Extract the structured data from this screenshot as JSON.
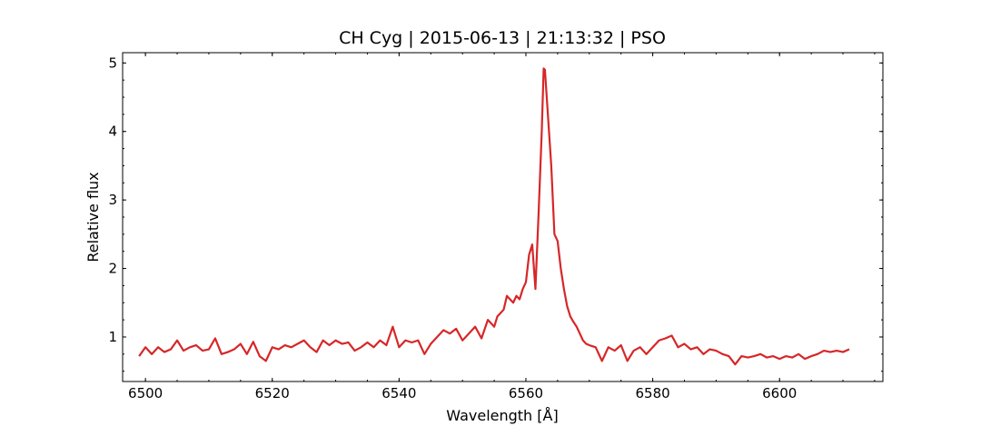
{
  "chart_data": {
    "type": "line",
    "title": "CH Cyg | 2015-06-13 | 21:13:32 | PSO",
    "x_label": "Wavelength [Å]",
    "y_label": "Relative flux",
    "color": "#d62728",
    "xlim": [
      6496.4,
      6616.3
    ],
    "ylim": [
      0.35,
      5.15
    ],
    "xticks": [
      6500,
      6520,
      6540,
      6560,
      6580,
      6600
    ],
    "yticks": [
      1,
      2,
      3,
      4,
      5
    ],
    "x": [
      6499,
      6500,
      6501,
      6502,
      6503,
      6504,
      6505,
      6506,
      6507,
      6508,
      6509,
      6510,
      6511,
      6512,
      6513,
      6514,
      6515,
      6516,
      6517,
      6518,
      6519,
      6520,
      6521,
      6522,
      6523,
      6524,
      6525,
      6526,
      6527,
      6528,
      6529,
      6530,
      6531,
      6532,
      6533,
      6534,
      6535,
      6536,
      6537,
      6538,
      6539,
      6540,
      6541,
      6542,
      6543,
      6544,
      6545,
      6546,
      6547,
      6548,
      6549,
      6550,
      6551,
      6552,
      6553,
      6554,
      6555,
      6555.5,
      6556,
      6556.5,
      6557,
      6557.5,
      6558,
      6558.5,
      6559,
      6559.5,
      6560,
      6560.5,
      6561,
      6561.5,
      6562,
      6562.5,
      6562.8,
      6563,
      6563.5,
      6564,
      6564.5,
      6565,
      6565.5,
      6566,
      6566.5,
      6567,
      6567.5,
      6568,
      6568.5,
      6569,
      6569.5,
      6570,
      6571,
      6572,
      6573,
      6574,
      6575,
      6576,
      6577,
      6578,
      6579,
      6580,
      6581,
      6582,
      6583,
      6584,
      6585,
      6586,
      6587,
      6588,
      6589,
      6590,
      6591,
      6592,
      6593,
      6594,
      6595,
      6596,
      6597,
      6598,
      6599,
      6600,
      6601,
      6602,
      6603,
      6604,
      6605,
      6606,
      6607,
      6608,
      6609,
      6610,
      6611
    ],
    "values": [
      0.72,
      0.85,
      0.75,
      0.85,
      0.78,
      0.82,
      0.95,
      0.8,
      0.85,
      0.88,
      0.8,
      0.82,
      0.98,
      0.75,
      0.78,
      0.82,
      0.9,
      0.75,
      0.93,
      0.72,
      0.65,
      0.85,
      0.82,
      0.88,
      0.85,
      0.9,
      0.95,
      0.85,
      0.78,
      0.95,
      0.88,
      0.95,
      0.9,
      0.92,
      0.8,
      0.85,
      0.92,
      0.85,
      0.95,
      0.88,
      1.15,
      0.85,
      0.95,
      0.92,
      0.95,
      0.75,
      0.9,
      1.0,
      1.1,
      1.05,
      1.12,
      0.95,
      1.05,
      1.15,
      0.98,
      1.25,
      1.15,
      1.3,
      1.35,
      1.4,
      1.6,
      1.55,
      1.5,
      1.6,
      1.55,
      1.7,
      1.8,
      2.2,
      2.35,
      1.7,
      2.8,
      4.0,
      4.92,
      4.9,
      4.2,
      3.5,
      2.5,
      2.4,
      2.0,
      1.7,
      1.45,
      1.3,
      1.22,
      1.15,
      1.05,
      0.95,
      0.9,
      0.88,
      0.85,
      0.65,
      0.85,
      0.8,
      0.88,
      0.65,
      0.8,
      0.85,
      0.75,
      0.85,
      0.95,
      0.98,
      1.02,
      0.85,
      0.9,
      0.82,
      0.85,
      0.75,
      0.82,
      0.8,
      0.75,
      0.72,
      0.6,
      0.72,
      0.7,
      0.72,
      0.75,
      0.7,
      0.72,
      0.68,
      0.72,
      0.7,
      0.75,
      0.68,
      0.72,
      0.75,
      0.8,
      0.78,
      0.8,
      0.78,
      0.82
    ]
  }
}
